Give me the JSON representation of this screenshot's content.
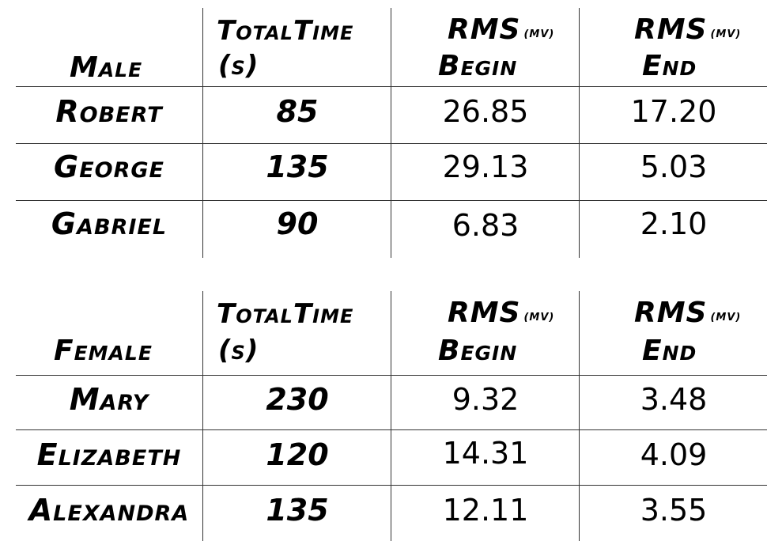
{
  "tables": [
    {
      "group_label": "Male",
      "headers": {
        "total_time": "TotalTime",
        "total_time_unit": "(s)",
        "rms_begin_top": "RMS",
        "rms_begin_unit": "(mV)",
        "rms_begin_bottom": "Begin",
        "rms_end_top": "RMS",
        "rms_end_unit": "(mV)",
        "rms_end_bottom": "End"
      },
      "rows": [
        {
          "name": "Robert",
          "total_time": "85",
          "rms_begin": "26.85",
          "rms_end": "17.20"
        },
        {
          "name": "George",
          "total_time": "135",
          "rms_begin": "29.13",
          "rms_end": "5.03"
        },
        {
          "name": "Gabriel",
          "total_time": "90",
          "rms_begin": "6.83",
          "rms_end": "2.10"
        }
      ]
    },
    {
      "group_label": "Female",
      "headers": {
        "total_time": "TotalTime",
        "total_time_unit": "(s)",
        "rms_begin_top": "RMS",
        "rms_begin_unit": "(mV)",
        "rms_begin_bottom": "Begin",
        "rms_end_top": "RMS",
        "rms_end_unit": "(mV)",
        "rms_end_bottom": "End"
      },
      "rows": [
        {
          "name": "Mary",
          "total_time": "230",
          "rms_begin": "9.32",
          "rms_end": "3.48"
        },
        {
          "name": "Elizabeth",
          "total_time": "120",
          "rms_begin": "14.31",
          "rms_end": "4.09"
        },
        {
          "name": "Alexandra",
          "total_time": "135",
          "rms_begin": "12.11",
          "rms_end": "3.55"
        }
      ]
    }
  ]
}
